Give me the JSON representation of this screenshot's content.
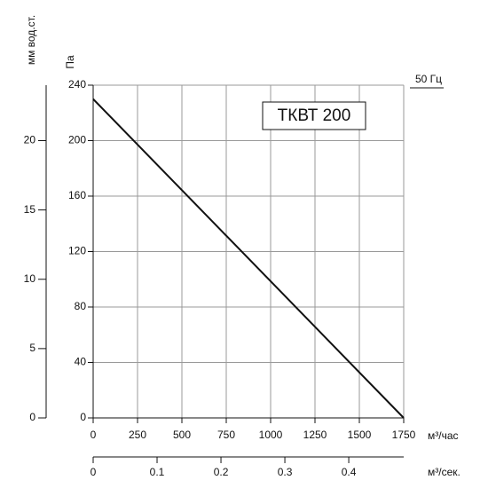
{
  "chart_data": {
    "type": "line",
    "y_label": "Па",
    "y2_label": "мм вод.ст.",
    "x_label": "м³/час",
    "x2_label": "м³/сек.",
    "frequency": "50 Гц",
    "x": [
      0,
      1750
    ],
    "series": [
      {
        "name": "ТКВТ 200",
        "color": "#111111",
        "values": [
          230,
          0
        ]
      }
    ],
    "xlim": [
      0,
      1750
    ],
    "xticks": [
      0,
      250,
      500,
      750,
      1000,
      1250,
      1500,
      1750
    ],
    "ylim": [
      0,
      240
    ],
    "yticks": [
      0,
      40,
      80,
      120,
      160,
      200,
      240
    ],
    "y2lim": [
      0,
      24
    ],
    "y2ticks": [
      0,
      5,
      10,
      15,
      20
    ],
    "x2lim": [
      0,
      0.486
    ],
    "x2ticks": [
      0,
      0.1,
      0.2,
      0.3,
      0.4
    ],
    "grid": true
  }
}
